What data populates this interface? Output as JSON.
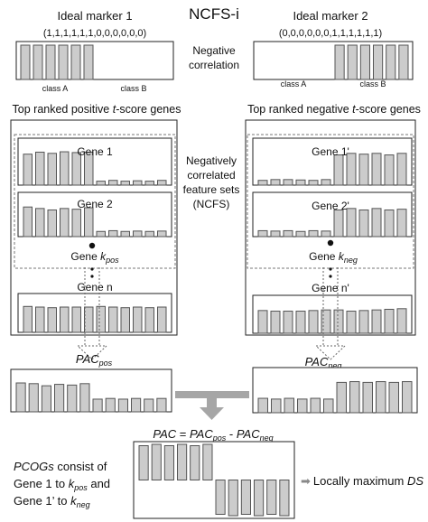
{
  "title": "NCFS-i",
  "colors": {
    "bar_fill": "#cccccc",
    "bar_stroke": "#555555",
    "frame": "#222222",
    "dashed": "#777777",
    "big_arrow": "#a6a6a6"
  },
  "marker1": {
    "label": "Ideal marker 1",
    "vector": "(1,1,1,1,1,1,0,0,0,0,0,0)",
    "values": [
      1,
      1,
      1,
      1,
      1,
      1,
      0,
      0,
      0,
      0,
      0,
      0
    ],
    "class_a": "class A",
    "class_b": "class B"
  },
  "marker2": {
    "label": "Ideal marker 2",
    "vector": "(0,0,0,0,0,0,1,1,1,1,1,1)",
    "values": [
      0,
      0,
      0,
      0,
      0,
      0,
      1,
      1,
      1,
      1,
      1,
      1
    ],
    "class_a": "class A",
    "class_b": "class B"
  },
  "negative_correlation": [
    "Negative",
    "correlation"
  ],
  "pos_panel": {
    "title_pre": "Top ranked positive ",
    "title_t": "t",
    "title_post": "-score genes",
    "gene1": {
      "label": "Gene 1",
      "values": [
        0.78,
        0.83,
        0.8,
        0.84,
        0.82,
        0.83,
        0.1,
        0.12,
        0.1,
        0.11,
        0.1,
        0.12
      ]
    },
    "gene2": {
      "label": "Gene 2",
      "values": [
        0.8,
        0.76,
        0.72,
        0.76,
        0.74,
        0.78,
        0.14,
        0.16,
        0.14,
        0.15,
        0.14,
        0.15
      ]
    },
    "genek": {
      "prefix": "Gene ",
      "k": "k",
      "sub": "pos"
    },
    "genen": {
      "label": "Gene n",
      "values": [
        0.82,
        0.8,
        0.78,
        0.8,
        0.8,
        0.8,
        0.82,
        0.8,
        0.78,
        0.8,
        0.78,
        0.8
      ]
    },
    "pac": {
      "main": "PAC",
      "sub": "pos"
    },
    "pac_values": [
      0.82,
      0.8,
      0.74,
      0.78,
      0.76,
      0.8,
      0.36,
      0.38,
      0.36,
      0.38,
      0.36,
      0.38
    ]
  },
  "neg_panel": {
    "title_pre": "Top ranked negative ",
    "title_t": "t",
    "title_post": "-score genes",
    "gene1": {
      "label": "Gene 1'",
      "values": [
        0.12,
        0.14,
        0.14,
        0.13,
        0.12,
        0.14,
        0.76,
        0.8,
        0.78,
        0.8,
        0.76,
        0.8
      ]
    },
    "gene2": {
      "label": "Gene 2'",
      "values": [
        0.16,
        0.15,
        0.16,
        0.14,
        0.16,
        0.15,
        0.72,
        0.76,
        0.72,
        0.76,
        0.72,
        0.74
      ]
    },
    "genek": {
      "prefix": "Gene ",
      "k": "k",
      "sub": "neg"
    },
    "genen": {
      "label": "Gene n'",
      "values": [
        0.74,
        0.72,
        0.72,
        0.72,
        0.74,
        0.76,
        0.76,
        0.72,
        0.74,
        0.76,
        0.78,
        0.8
      ]
    },
    "pac": {
      "main": "PAC",
      "sub": "neg"
    },
    "pac_values": [
      0.38,
      0.36,
      0.38,
      0.36,
      0.38,
      0.36,
      0.8,
      0.82,
      0.8,
      0.82,
      0.8,
      0.82
    ]
  },
  "ncfs_label": [
    "Negatively",
    "correlated",
    "feature sets",
    "(NCFS)"
  ],
  "pac_formula": {
    "left": "PAC",
    "eq": " = ",
    "pos": "PAC",
    "pos_sub": "pos",
    "minus": " - ",
    "neg": "PAC",
    "neg_sub": "neg"
  },
  "pac_diff_values": [
    0.5,
    0.52,
    0.5,
    0.52,
    0.5,
    0.52,
    -0.5,
    -0.52,
    -0.5,
    -0.52,
    -0.5,
    -0.52
  ],
  "pcog": {
    "line1_italic": "PCOGs",
    "line1_rest": " consist of",
    "line2_pre": "Gene 1 to ",
    "line2_k": "k",
    "line2_sub": "pos",
    "line2_post": " and",
    "line3_pre": "Gene 1’ to ",
    "line3_k": "k",
    "line3_sub": "neg"
  },
  "local_max": {
    "arrow": "➡",
    "text": "Locally maximum ",
    "ds": "DS"
  }
}
